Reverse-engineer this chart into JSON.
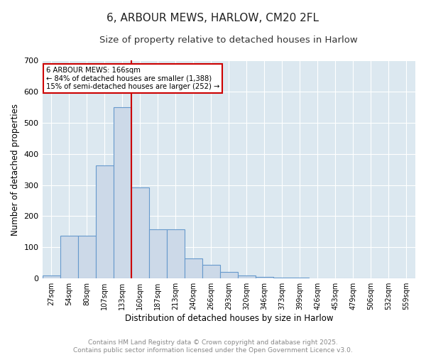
{
  "title": "6, ARBOUR MEWS, HARLOW, CM20 2FL",
  "subtitle": "Size of property relative to detached houses in Harlow",
  "xlabel": "Distribution of detached houses by size in Harlow",
  "ylabel": "Number of detached properties",
  "bar_labels": [
    "27sqm",
    "54sqm",
    "80sqm",
    "107sqm",
    "133sqm",
    "160sqm",
    "187sqm",
    "213sqm",
    "240sqm",
    "266sqm",
    "293sqm",
    "320sqm",
    "346sqm",
    "373sqm",
    "399sqm",
    "426sqm",
    "453sqm",
    "479sqm",
    "506sqm",
    "532sqm",
    "559sqm"
  ],
  "bar_values": [
    10,
    138,
    138,
    362,
    550,
    293,
    158,
    158,
    65,
    43,
    22,
    10,
    5,
    3,
    2,
    1,
    1,
    1,
    1,
    1,
    0
  ],
  "bar_color": "#ccd9e8",
  "bar_edge_color": "#6699cc",
  "red_line_index": 5,
  "annotation_line1": "6 ARBOUR MEWS: 166sqm",
  "annotation_line2": "← 84% of detached houses are smaller (1,388)",
  "annotation_line3": "15% of semi-detached houses are larger (252) →",
  "annotation_box_color": "#ffffff",
  "annotation_edge_color": "#cc0000",
  "ylim": [
    0,
    700
  ],
  "yticks": [
    0,
    100,
    200,
    300,
    400,
    500,
    600,
    700
  ],
  "background_color": "#dce8f0",
  "footer_line1": "Contains HM Land Registry data © Crown copyright and database right 2025.",
  "footer_line2": "Contains public sector information licensed under the Open Government Licence v3.0.",
  "title_fontsize": 11,
  "subtitle_fontsize": 9.5,
  "axis_label_fontsize": 8.5,
  "tick_fontsize": 7,
  "footer_fontsize": 6.5
}
